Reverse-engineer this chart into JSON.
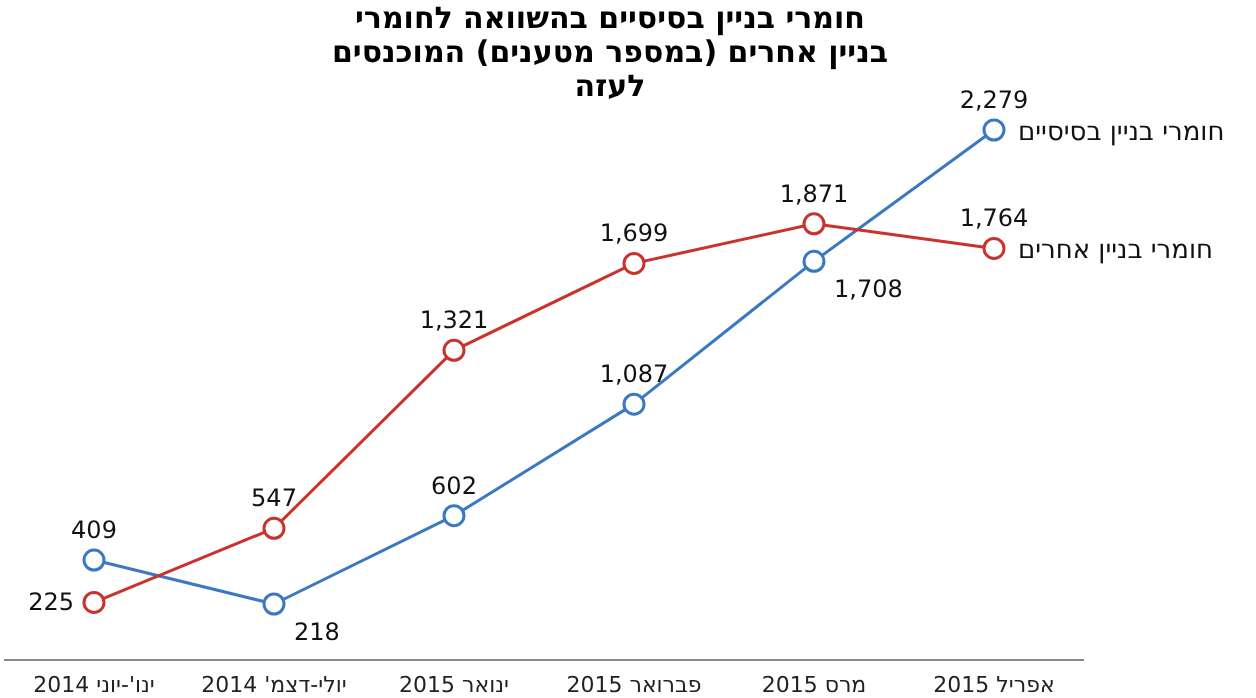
{
  "chart_data": {
    "type": "line",
    "title": "חומרי בניין בסיסיים בהשוואה לחומרי בניין אחרים (במספר מטענים) המוכנסים לעזה",
    "categories": [
      "ינו'-יוני 2014",
      "יולי-דצמ' 2014",
      "ינואר 2015",
      "פברואר 2015",
      "מרס 2015",
      "אפריל 2015"
    ],
    "series": [
      {
        "name": "חומרי בניין בסיסיים",
        "color": "#3b78c2",
        "values": [
          409,
          218,
          602,
          1087,
          1708,
          2279
        ],
        "value_labels": [
          "409",
          "218",
          "602",
          "1,087",
          "1,708",
          "2,279"
        ]
      },
      {
        "name": "חומרי בניין אחרים",
        "color": "#c9332c",
        "values": [
          225,
          547,
          1321,
          1699,
          1871,
          1764
        ],
        "value_labels": [
          "225",
          "547",
          "1,321",
          "1,699",
          "1,871",
          "1,764"
        ]
      }
    ],
    "grid": false,
    "legend": false,
    "marker": "circle",
    "line_style": "solid"
  }
}
